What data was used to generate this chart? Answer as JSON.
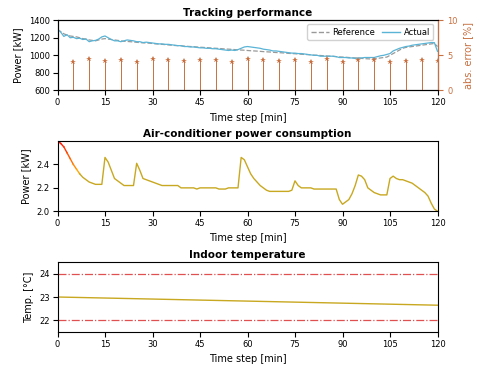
{
  "title1": "Tracking performance",
  "title2": "Air-conditioner power consumption",
  "title3": "Indoor temperature",
  "xlabel": "Time step [min]",
  "ylabel1": "Power [kW]",
  "ylabel2": "Power [kW]",
  "ylabel3": "Temp. [°C]",
  "ylabel_right": "abs. error [%]",
  "xlim": [
    0,
    120
  ],
  "ylim1": [
    600,
    1400
  ],
  "ylim2": [
    2.0,
    2.6
  ],
  "ylim3": [
    21.5,
    24.5
  ],
  "ylim_right": [
    0,
    10
  ],
  "yticks1": [
    600,
    800,
    1000,
    1200,
    1400
  ],
  "yticks2": [
    2.0,
    2.2,
    2.4
  ],
  "yticks3": [
    22,
    23,
    24
  ],
  "yticks_right": [
    0,
    5,
    10
  ],
  "xticks": [
    0,
    15,
    30,
    45,
    60,
    75,
    90,
    105,
    120
  ],
  "temp_upper": 24.0,
  "temp_lower": 22.0,
  "ref_color": "#999999",
  "actual_color": "#5ab4d6",
  "error_color": "#c87040",
  "ac_color": "#c8a820",
  "temp_color": "#c8a820",
  "temp_bound_color": "#e05050",
  "bg_color": "#ffffff",
  "stem_every": 5,
  "stem_start": 5,
  "reference_data": [
    1295,
    1270,
    1245,
    1230,
    1220,
    1215,
    1210,
    1200,
    1190,
    1185,
    1175,
    1170,
    1165,
    1175,
    1185,
    1190,
    1185,
    1180,
    1175,
    1170,
    1165,
    1160,
    1158,
    1155,
    1152,
    1148,
    1145,
    1142,
    1140,
    1138,
    1135,
    1130,
    1128,
    1125,
    1122,
    1118,
    1115,
    1112,
    1110,
    1108,
    1105,
    1102,
    1100,
    1098,
    1095,
    1092,
    1090,
    1088,
    1085,
    1082,
    1080,
    1078,
    1075,
    1072,
    1070,
    1068,
    1065,
    1062,
    1060,
    1058,
    1055,
    1052,
    1050,
    1048,
    1045,
    1042,
    1040,
    1038,
    1035,
    1032,
    1030,
    1028,
    1025,
    1022,
    1020,
    1018,
    1015,
    1012,
    1010,
    1008,
    1005,
    1002,
    1000,
    998,
    995,
    992,
    990,
    988,
    985,
    982,
    980,
    978,
    975,
    972,
    970,
    968,
    965,
    962,
    960,
    958,
    960,
    965,
    970,
    975,
    980,
    1000,
    1020,
    1040,
    1060,
    1080,
    1090,
    1095,
    1100,
    1105,
    1110,
    1115,
    1120,
    1125,
    1130,
    1135,
    1100
  ],
  "actual_data": [
    1295,
    1265,
    1215,
    1235,
    1200,
    1205,
    1190,
    1195,
    1180,
    1185,
    1155,
    1165,
    1170,
    1185,
    1210,
    1220,
    1200,
    1180,
    1165,
    1165,
    1155,
    1165,
    1175,
    1170,
    1165,
    1155,
    1155,
    1145,
    1150,
    1145,
    1140,
    1135,
    1130,
    1130,
    1125,
    1125,
    1120,
    1115,
    1110,
    1110,
    1100,
    1100,
    1095,
    1095,
    1090,
    1085,
    1085,
    1080,
    1080,
    1075,
    1075,
    1070,
    1065,
    1060,
    1055,
    1060,
    1055,
    1065,
    1080,
    1095,
    1100,
    1095,
    1090,
    1085,
    1080,
    1070,
    1065,
    1060,
    1050,
    1050,
    1045,
    1040,
    1035,
    1030,
    1025,
    1025,
    1020,
    1020,
    1015,
    1010,
    1005,
    1000,
    1000,
    990,
    990,
    990,
    990,
    990,
    985,
    975,
    975,
    975,
    970,
    970,
    965,
    970,
    970,
    975,
    975,
    975,
    975,
    985,
    995,
    1000,
    1010,
    1020,
    1050,
    1065,
    1080,
    1090,
    1100,
    1105,
    1115,
    1120,
    1125,
    1130,
    1135,
    1140,
    1145,
    1145,
    1045
  ],
  "ac_data": [
    2.6,
    2.58,
    2.55,
    2.5,
    2.45,
    2.4,
    2.36,
    2.32,
    2.29,
    2.27,
    2.25,
    2.24,
    2.23,
    2.23,
    2.23,
    2.46,
    2.42,
    2.35,
    2.28,
    2.26,
    2.24,
    2.22,
    2.22,
    2.22,
    2.22,
    2.41,
    2.35,
    2.28,
    2.27,
    2.26,
    2.25,
    2.24,
    2.23,
    2.22,
    2.22,
    2.22,
    2.22,
    2.22,
    2.22,
    2.2,
    2.2,
    2.2,
    2.2,
    2.2,
    2.19,
    2.2,
    2.2,
    2.2,
    2.2,
    2.2,
    2.2,
    2.19,
    2.19,
    2.19,
    2.2,
    2.2,
    2.2,
    2.2,
    2.46,
    2.44,
    2.38,
    2.32,
    2.28,
    2.25,
    2.22,
    2.2,
    2.18,
    2.17,
    2.17,
    2.17,
    2.17,
    2.17,
    2.17,
    2.17,
    2.18,
    2.26,
    2.22,
    2.2,
    2.2,
    2.2,
    2.2,
    2.19,
    2.19,
    2.19,
    2.19,
    2.19,
    2.19,
    2.19,
    2.19,
    2.1,
    2.06,
    2.08,
    2.1,
    2.15,
    2.22,
    2.31,
    2.3,
    2.27,
    2.2,
    2.18,
    2.16,
    2.15,
    2.14,
    2.14,
    2.14,
    2.28,
    2.3,
    2.28,
    2.27,
    2.27,
    2.26,
    2.25,
    2.24,
    2.22,
    2.2,
    2.18,
    2.16,
    2.13,
    2.07,
    2.02,
    2.0
  ],
  "temp_data_start": 23.0,
  "temp_data_end": 22.65,
  "stem_y": [
    4.0,
    4.5,
    4.2,
    4.3,
    4.1,
    4.5,
    4.3,
    4.2,
    4.4,
    4.3,
    4.1,
    4.5,
    4.3,
    4.2,
    4.4,
    4.0,
    4.5,
    4.1,
    4.3,
    4.4,
    4.1,
    4.2,
    4.3
  ]
}
